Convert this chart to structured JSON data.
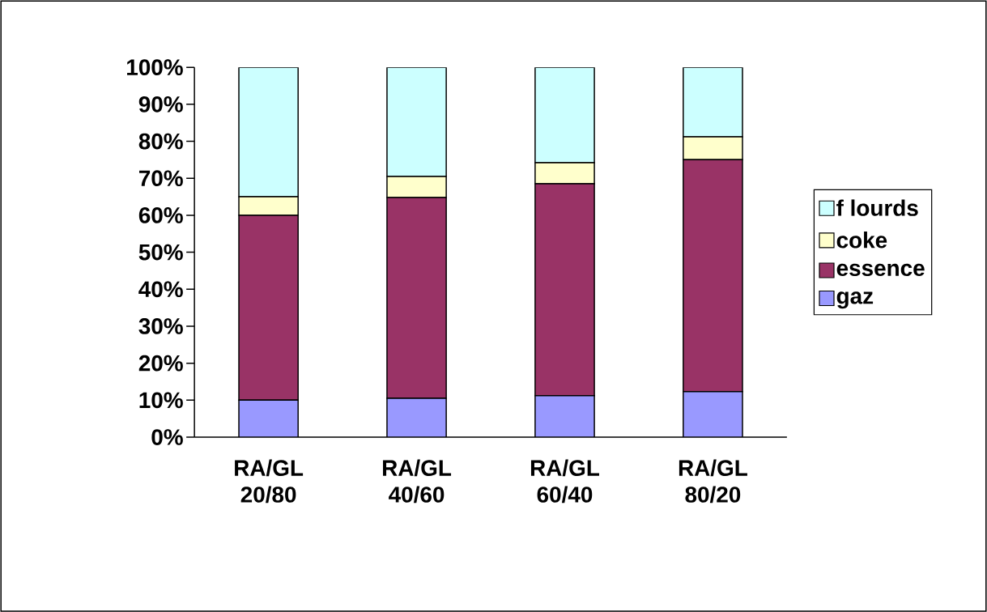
{
  "chart_data": {
    "type": "bar",
    "stacked": true,
    "categories": [
      "RA/GL 20/80",
      "RA/GL 40/60",
      "RA/GL 60/40",
      "RA/GL 80/20"
    ],
    "series": [
      {
        "name": "gaz",
        "color": "#9999ff",
        "values": [
          10,
          10.5,
          11.2,
          12.3
        ]
      },
      {
        "name": "essence",
        "color": "#993366",
        "values": [
          50,
          54.3,
          57.3,
          62.7
        ]
      },
      {
        "name": "coke",
        "color": "#ffffcc",
        "values": [
          5,
          5.7,
          5.7,
          6.2
        ]
      },
      {
        "name": "f lourds",
        "color": "#ccffff",
        "values": [
          35,
          29.5,
          25.8,
          18.8
        ]
      }
    ],
    "ylim": [
      0,
      100
    ],
    "yticks": [
      {
        "value": 0,
        "label": "0%"
      },
      {
        "value": 10,
        "label": "10%"
      },
      {
        "value": 20,
        "label": "20%"
      },
      {
        "value": 30,
        "label": "30%"
      },
      {
        "value": 40,
        "label": "40%"
      },
      {
        "value": 50,
        "label": "50%"
      },
      {
        "value": 60,
        "label": "60%"
      },
      {
        "value": 70,
        "label": "70%"
      },
      {
        "value": 80,
        "label": "80%"
      },
      {
        "value": 90,
        "label": "90%"
      },
      {
        "value": 100,
        "label": "100%"
      }
    ],
    "grid": false,
    "legend": "right"
  }
}
